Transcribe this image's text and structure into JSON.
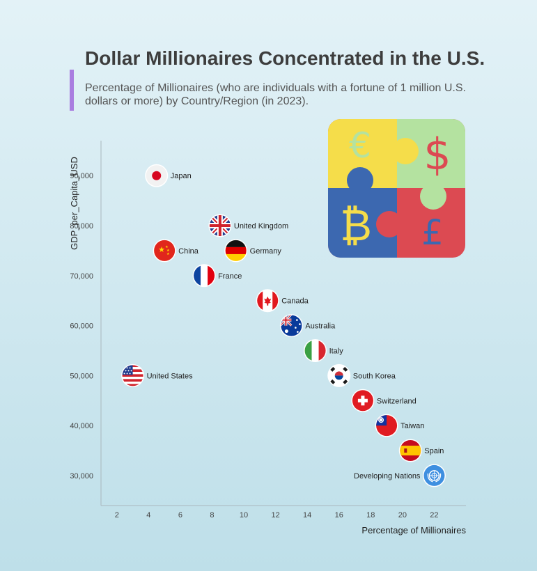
{
  "chart_data": {
    "type": "scatter",
    "title": "Dollar Millionaires Concentrated in the U.S.",
    "subtitle": "Percentage of Millionaires (who are individuals with a fortune of 1 million U.S. dollars or more) by Country/Region (in 2023).",
    "xlabel": "Percentage of Millionaires",
    "ylabel": "GDP_per_Capita_USD",
    "xlim": [
      1,
      24
    ],
    "ylim": [
      24000,
      97000
    ],
    "xticks": [
      2,
      4,
      6,
      8,
      10,
      12,
      14,
      16,
      18,
      20,
      22
    ],
    "yticks": [
      30000,
      40000,
      50000,
      60000,
      70000,
      80000,
      90000
    ],
    "ytick_labels": [
      "30,000",
      "40,000",
      "50,000",
      "60,000",
      "70,000",
      "80,000",
      "90,000"
    ],
    "grid": false,
    "points": [
      {
        "label": "Japan",
        "x": 4.5,
        "y": 90000,
        "flag": "japan-flag-icon"
      },
      {
        "label": "United Kingdom",
        "x": 8.5,
        "y": 80000,
        "flag": "uk-flag-icon"
      },
      {
        "label": "China",
        "x": 5.0,
        "y": 75000,
        "flag": "china-flag-icon"
      },
      {
        "label": "Germany",
        "x": 9.5,
        "y": 75000,
        "flag": "germany-flag-icon"
      },
      {
        "label": "France",
        "x": 7.5,
        "y": 70000,
        "flag": "france-flag-icon"
      },
      {
        "label": "Canada",
        "x": 11.5,
        "y": 65000,
        "flag": "canada-flag-icon"
      },
      {
        "label": "Australia",
        "x": 13.0,
        "y": 60000,
        "flag": "australia-flag-icon"
      },
      {
        "label": "United States",
        "x": 3.0,
        "y": 50000,
        "flag": "us-flag-icon"
      },
      {
        "label": "Italy",
        "x": 14.5,
        "y": 55000,
        "flag": "italy-flag-icon"
      },
      {
        "label": "South Korea",
        "x": 16.0,
        "y": 50000,
        "flag": "south-korea-flag-icon"
      },
      {
        "label": "Switzerland",
        "x": 17.5,
        "y": 45000,
        "flag": "switzerland-flag-icon"
      },
      {
        "label": "Taiwan",
        "x": 19.0,
        "y": 40000,
        "flag": "taiwan-flag-icon"
      },
      {
        "label": "Spain",
        "x": 20.5,
        "y": 35000,
        "flag": "spain-flag-icon"
      },
      {
        "label": "Developing Nations",
        "x": 22.0,
        "y": 30000,
        "flag": "un-emblem-icon",
        "label_side": "left"
      }
    ]
  },
  "decoration": {
    "icon": "currency-puzzle-icon",
    "colors": {
      "yellow": "#f5dd4a",
      "green": "#b4e2a0",
      "blue": "#3c68b0",
      "red": "#dc4a52"
    }
  }
}
